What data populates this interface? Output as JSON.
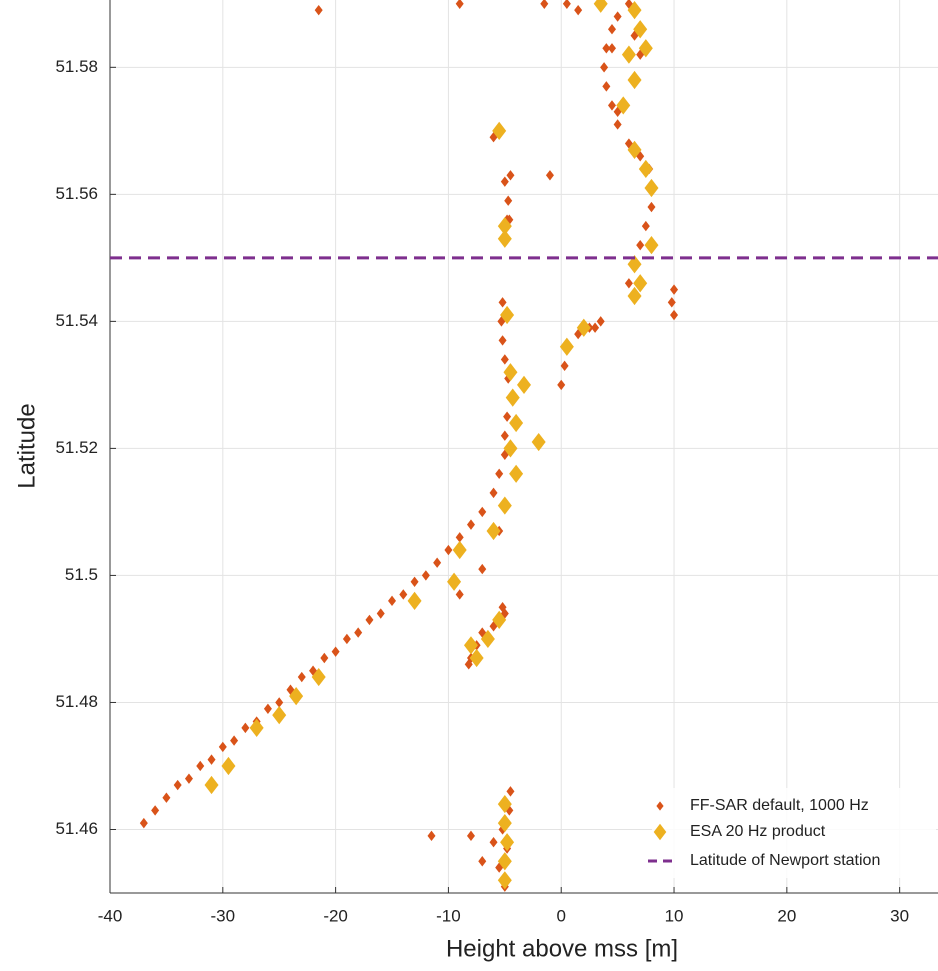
{
  "chart_data": {
    "type": "scatter",
    "xlabel": "Height above mss [m]",
    "ylabel": "Latitude",
    "xlim": [
      -40,
      33.4
    ],
    "ylim": [
      51.45,
      51.5906
    ],
    "xticks": [
      -40,
      -30,
      -20,
      -10,
      0,
      10,
      20,
      30
    ],
    "yticks": [
      51.46,
      51.48,
      51.5,
      51.52,
      51.54,
      51.56,
      51.58
    ],
    "grid": true,
    "legend": "lower right",
    "series": [
      {
        "name": "FF-SAR default, 1000 Hz",
        "color": "#d95319",
        "marker": "diamond",
        "size": 4,
        "x": [
          -37,
          -36,
          -35,
          -34,
          -33,
          -32,
          -31,
          -30,
          -29,
          -28,
          -27,
          -26,
          -25,
          -24,
          -23,
          -22,
          -21,
          -20,
          -19,
          -18,
          -17,
          -16,
          -15,
          -14,
          -13,
          -12,
          -11,
          -10,
          -9,
          -8,
          -7,
          -6,
          -5.5,
          -5,
          -5,
          -4.8,
          -4.5,
          -4.7,
          -5,
          -5.2,
          -5.3,
          -5.2,
          -5,
          -4.8,
          -4.7,
          -5,
          -4.6,
          -6,
          -4.5,
          -1,
          -8,
          -7.5,
          -7,
          -6,
          -5,
          -8.2,
          -5.2,
          -5,
          -5.5,
          -4.8,
          -5.2,
          -4.6,
          -4.5,
          -6,
          -8,
          -11.5,
          -7,
          0,
          0.3,
          0.7,
          1.5,
          2.5,
          3.5,
          3,
          6,
          6.5,
          7,
          7.5,
          8,
          8.2,
          7.8,
          7,
          6,
          5,
          4.5,
          4,
          3.8,
          4,
          4.5,
          5,
          6,
          6.5,
          7,
          4.5,
          5,
          10,
          10,
          9.8,
          -1.5,
          0.5,
          1.5,
          -9,
          -21.5,
          -9,
          -7,
          -5.5
        ],
        "values": [
          51.461,
          51.463,
          51.465,
          51.467,
          51.468,
          51.47,
          51.471,
          51.473,
          51.474,
          51.476,
          51.477,
          51.479,
          51.48,
          51.482,
          51.484,
          51.485,
          51.487,
          51.488,
          51.49,
          51.491,
          51.493,
          51.494,
          51.496,
          51.497,
          51.499,
          51.5,
          51.502,
          51.504,
          51.506,
          51.508,
          51.51,
          51.513,
          51.516,
          51.519,
          51.522,
          51.525,
          51.528,
          51.531,
          51.534,
          51.537,
          51.54,
          51.543,
          51.553,
          51.556,
          51.559,
          51.562,
          51.556,
          51.569,
          51.563,
          51.563,
          51.487,
          51.489,
          51.491,
          51.492,
          51.494,
          51.486,
          51.495,
          51.451,
          51.454,
          51.457,
          51.46,
          51.463,
          51.466,
          51.458,
          51.459,
          51.459,
          51.455,
          51.53,
          51.533,
          51.536,
          51.538,
          51.539,
          51.54,
          51.539,
          51.546,
          51.549,
          51.552,
          51.555,
          51.558,
          51.561,
          51.564,
          51.566,
          51.568,
          51.571,
          51.574,
          51.577,
          51.58,
          51.583,
          51.586,
          51.588,
          51.59,
          51.585,
          51.582,
          51.583,
          51.573,
          51.541,
          51.545,
          51.543,
          51.59,
          51.59,
          51.589,
          51.59,
          51.589,
          51.497,
          51.501,
          51.507
        ]
      },
      {
        "name": "ESA 20 Hz product",
        "color": "#edb120",
        "marker": "diamond",
        "size": 7,
        "x": [
          -31,
          -29.5,
          -27,
          -25,
          -23.5,
          -21.5,
          -13,
          -9.5,
          -9,
          -8,
          -7.5,
          -6.5,
          -5.5,
          -6,
          -5,
          -4,
          -4.5,
          -4,
          -4.3,
          -3.3,
          -4.5,
          -4.8,
          -2,
          0.5,
          2,
          -5,
          -5,
          -5.5,
          -5,
          -5,
          -4.8,
          -5,
          -5,
          6.5,
          7,
          6.5,
          8,
          8,
          7.5,
          6.5,
          5.5,
          6.5,
          6,
          7,
          7.5,
          3.5,
          6.5
        ],
        "values": [
          51.467,
          51.47,
          51.476,
          51.478,
          51.481,
          51.484,
          51.496,
          51.499,
          51.504,
          51.489,
          51.487,
          51.49,
          51.493,
          51.507,
          51.511,
          51.516,
          51.52,
          51.524,
          51.528,
          51.53,
          51.532,
          51.541,
          51.521,
          51.536,
          51.539,
          51.555,
          51.553,
          51.57,
          51.464,
          51.461,
          51.458,
          51.455,
          51.452,
          51.544,
          51.546,
          51.549,
          51.552,
          51.561,
          51.564,
          51.567,
          51.574,
          51.578,
          51.582,
          51.586,
          51.583,
          51.59,
          51.589
        ]
      }
    ],
    "hline": {
      "name": "Latitude of Newport station",
      "value": 51.55,
      "color": "#7e2f8e",
      "dash": true
    }
  }
}
